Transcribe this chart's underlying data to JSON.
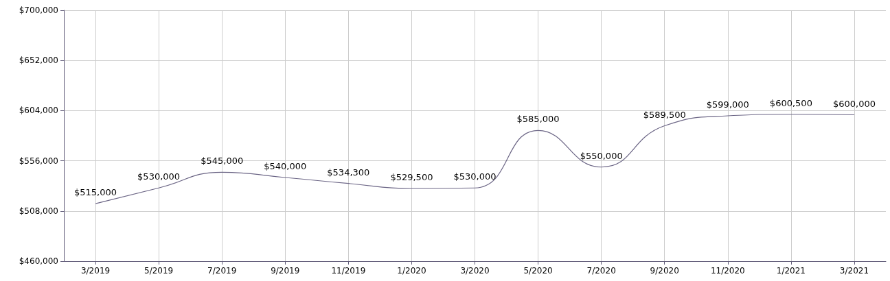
{
  "chart_data": {
    "type": "line",
    "categories": [
      "3/2019",
      "5/2019",
      "7/2019",
      "9/2019",
      "11/2019",
      "1/2020",
      "3/2020",
      "5/2020",
      "7/2020",
      "9/2020",
      "11/2020",
      "1/2021",
      "3/2021"
    ],
    "series": [
      {
        "color": "#6b6585",
        "values": [
          515000,
          530000,
          545000,
          540000,
          534300,
          529500,
          530000,
          585000,
          550000,
          589500,
          599000,
          600500,
          600000
        ]
      }
    ],
    "value_labels": [
      "$515,000",
      "$530,000",
      "$545,000",
      "$540,000",
      "$534,300",
      "$529,500",
      "$530,000",
      "$585,000",
      "$550,000",
      "$589,500",
      "$599,000",
      "$600,500",
      "$600,000"
    ],
    "ylim": [
      460000,
      700000
    ],
    "yticks": [
      {
        "value": 460000,
        "label": "$460,000"
      },
      {
        "value": 508000,
        "label": "$508,000"
      },
      {
        "value": 556000,
        "label": "$556,000"
      },
      {
        "value": 604000,
        "label": "$604,000"
      },
      {
        "value": 652000,
        "label": "$652,000"
      },
      {
        "value": 700000,
        "label": "$700,000"
      }
    ],
    "grid": true,
    "marker": "none",
    "line_style": "solid"
  }
}
